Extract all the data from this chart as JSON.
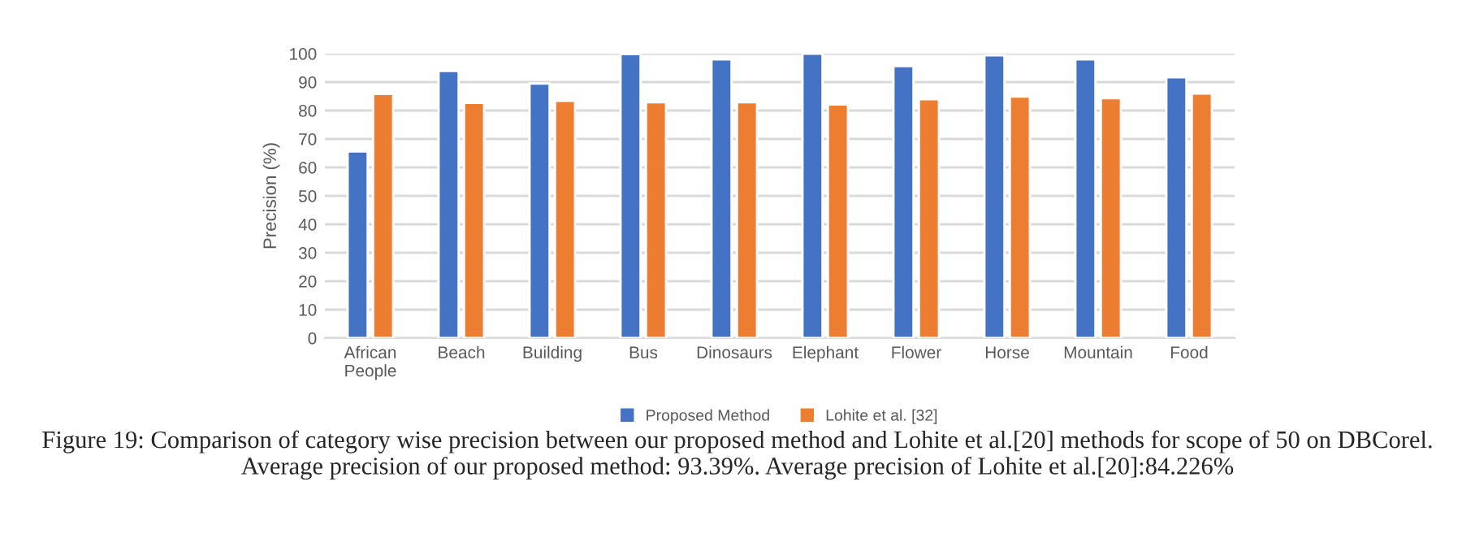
{
  "chart_data": {
    "type": "bar",
    "ylabel": "Precision (%)",
    "categories": [
      "African\nPeople",
      "Beach",
      "Building",
      "Bus",
      "Dinosaurs",
      "Elephant",
      "Flower",
      "Horse",
      "Mountain",
      "Food"
    ],
    "series": [
      {
        "name": "Proposed Method",
        "color": "#4472c4",
        "values": [
          65.6,
          93.9,
          89.5,
          99.8,
          98.0,
          100,
          95.6,
          99.4,
          98.0,
          91.7
        ]
      },
      {
        "name": "Lohite et al. [32]",
        "color": "#ed7d31",
        "values": [
          85.8,
          82.7,
          83.4,
          82.9,
          82.9,
          82.1,
          84.0,
          84.9,
          84.3,
          86.0
        ]
      }
    ],
    "ylim": [
      0,
      100
    ],
    "yticks": [
      0,
      10,
      20,
      30,
      40,
      50,
      60,
      70,
      80,
      90,
      100
    ],
    "grid": "y",
    "legend": "bottom",
    "annotations": [
      "Figure 19: Comparison of category wise precision between our proposed method and Lohite et al.[20] methods for scope of 50 on DBCorel. Average precision of our proposed method: 93.39%. Average precision of Lohite et al.[20]:84.226%"
    ]
  }
}
